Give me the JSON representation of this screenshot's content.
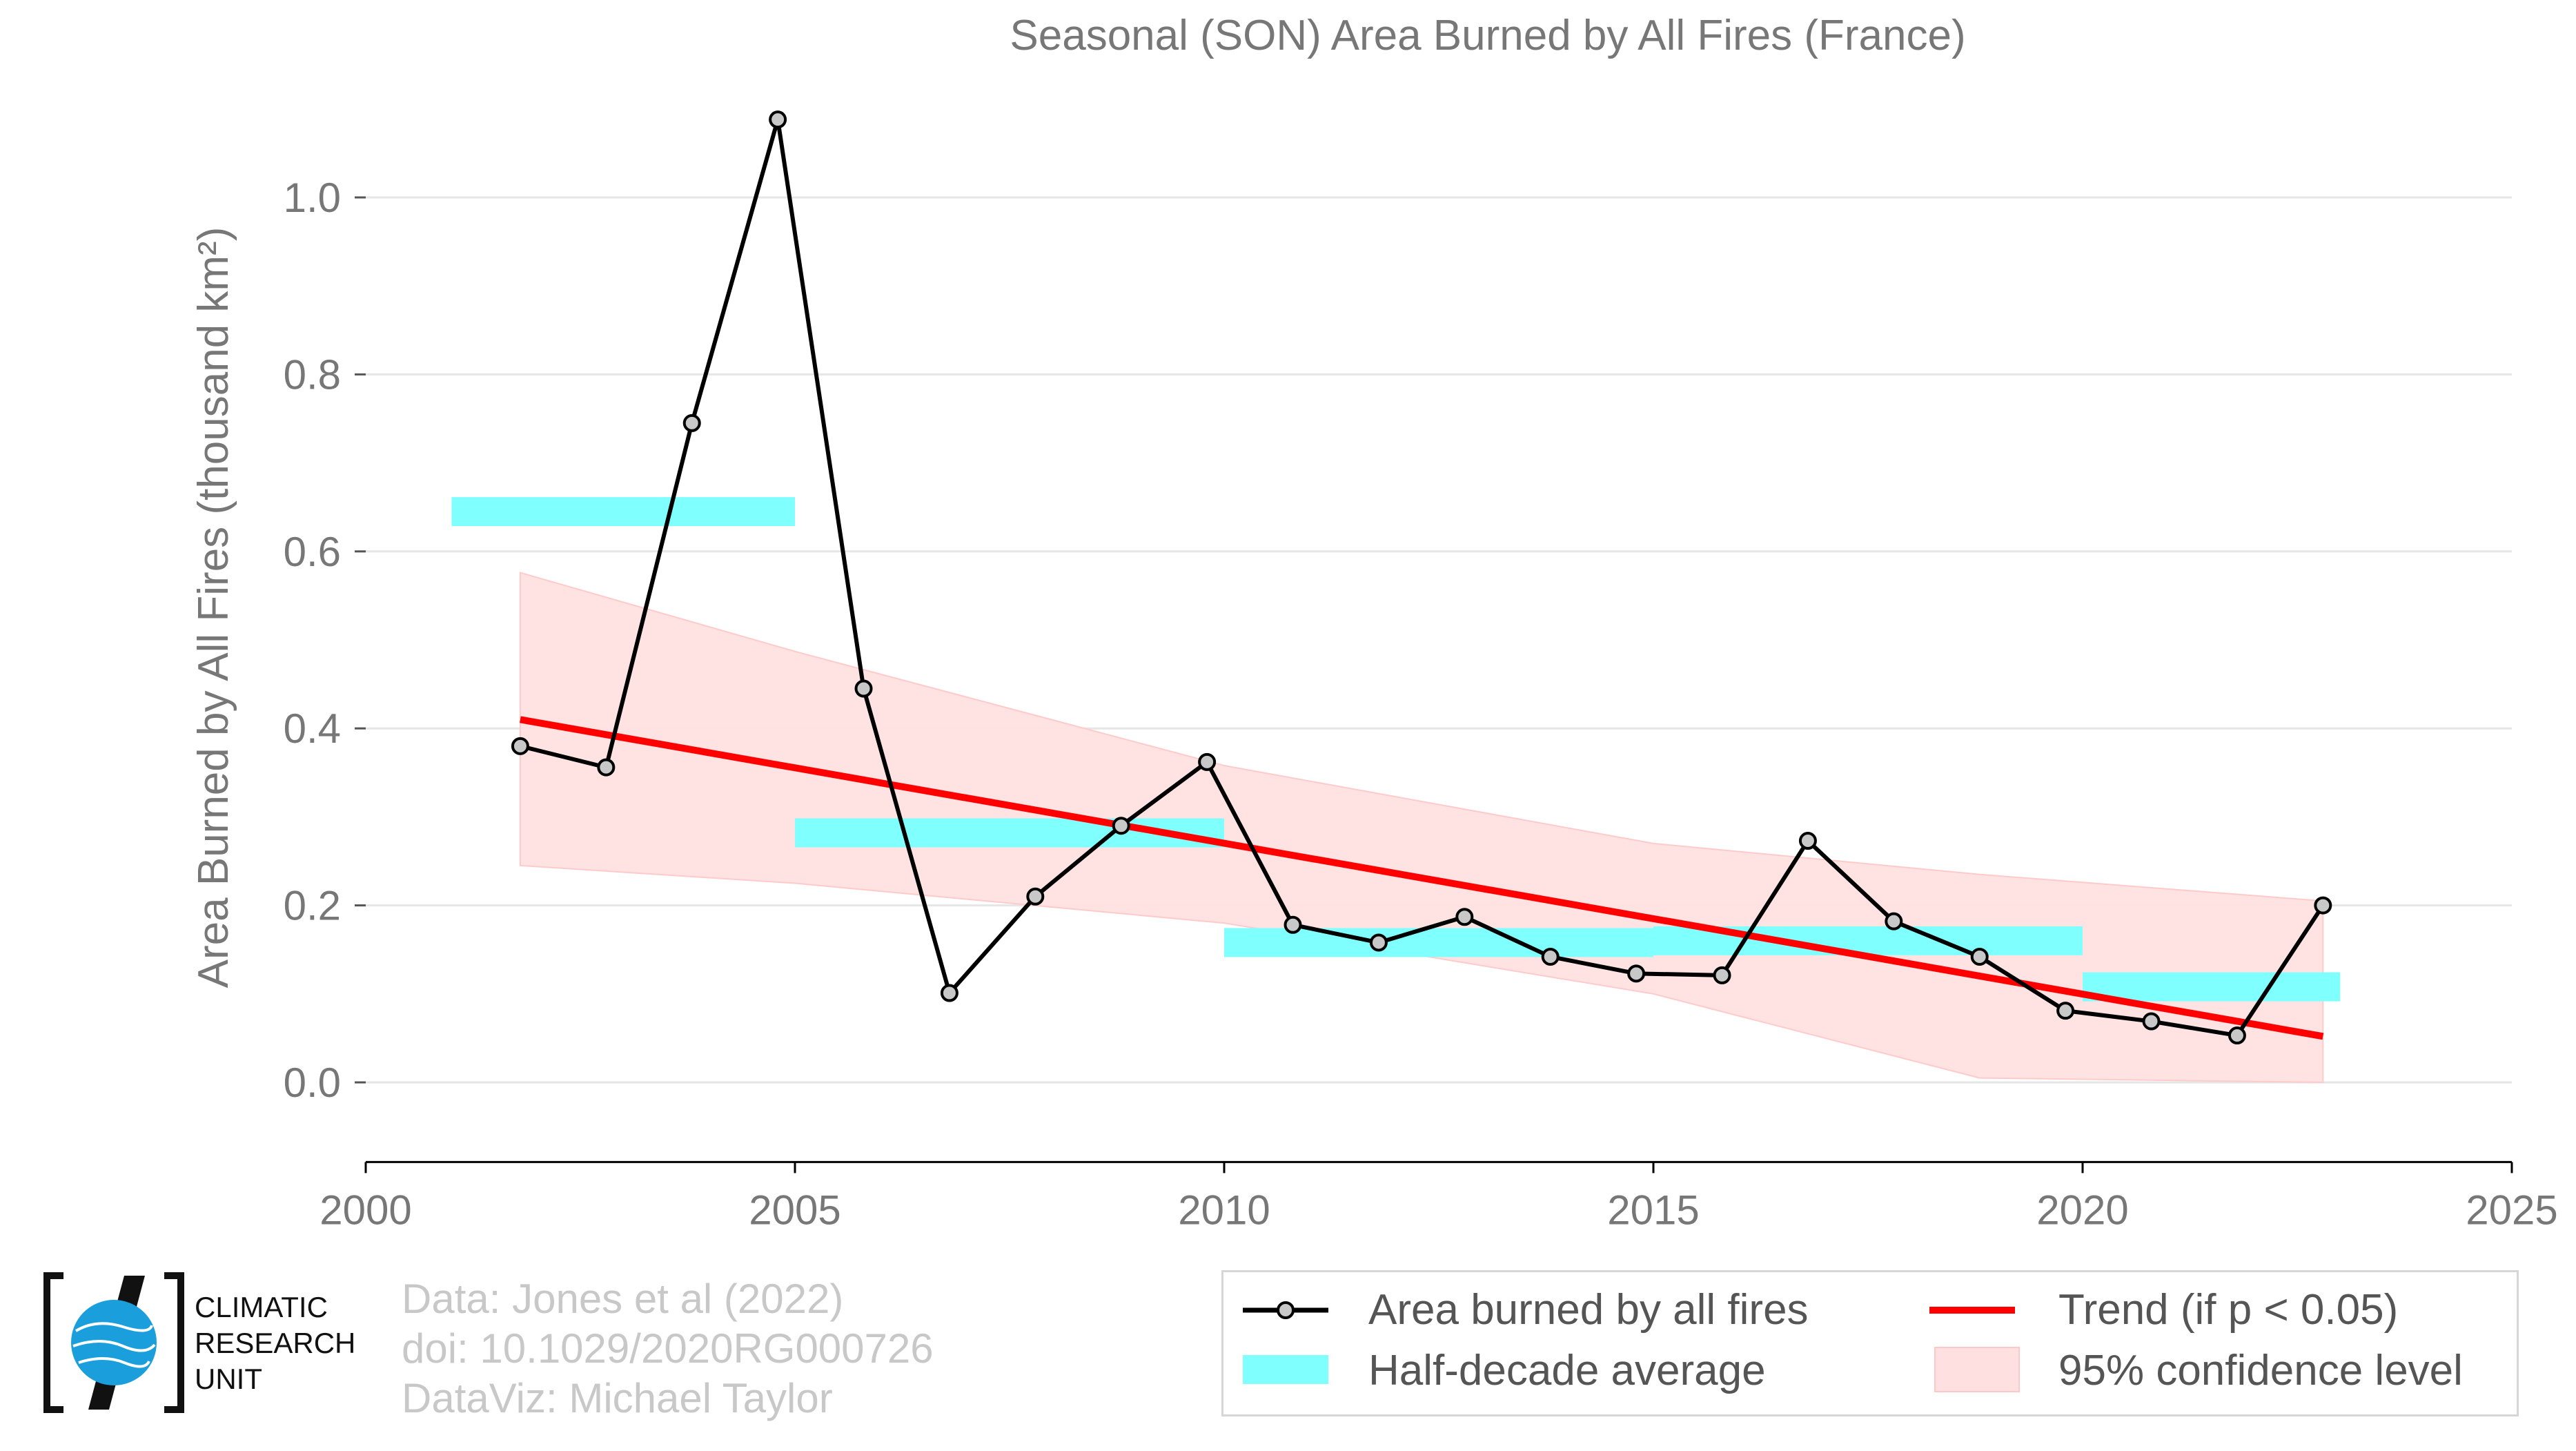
{
  "chart_data": {
    "type": "line",
    "title": "Seasonal (SON) Area Burned by All Fires (France)",
    "xlabel": "",
    "ylabel": "Area Burned by All Fires (thousand km²)",
    "xlim": [
      2000,
      2025
    ],
    "ylim": [
      -0.09,
      1.15
    ],
    "x_ticks": [
      2000,
      2005,
      2010,
      2015,
      2020,
      2025
    ],
    "y_ticks": [
      0.0,
      0.2,
      0.4,
      0.6,
      0.8,
      1.0
    ],
    "y_tick_labels": [
      "0.0",
      "0.2",
      "0.4",
      "0.6",
      "0.8",
      "1.0"
    ],
    "grid": "horizontal",
    "legend_position": "bottom-right",
    "series": [
      {
        "name": "Area burned by all fires",
        "color": "#000000",
        "x": [
          2001.8,
          2002.8,
          2003.8,
          2004.8,
          2005.8,
          2006.8,
          2007.8,
          2008.8,
          2009.8,
          2010.8,
          2011.8,
          2012.8,
          2013.8,
          2014.8,
          2015.8,
          2016.8,
          2017.8,
          2018.8,
          2019.8,
          2020.8,
          2021.8,
          2022.8
        ],
        "y": [
          0.38,
          0.356,
          0.745,
          1.088,
          0.445,
          0.101,
          0.21,
          0.29,
          0.362,
          0.178,
          0.158,
          0.187,
          0.142,
          0.123,
          0.121,
          0.273,
          0.182,
          0.142,
          0.081,
          0.069,
          0.053,
          0.2
        ]
      }
    ],
    "half_decade_average": {
      "name": "Half-decade average",
      "color": "#80ffff",
      "segments": [
        {
          "x0": 2001.0,
          "x1": 2005.0,
          "y": 0.645
        },
        {
          "x0": 2005.0,
          "x1": 2010.0,
          "y": 0.282
        },
        {
          "x0": 2010.0,
          "x1": 2015.0,
          "y": 0.158
        },
        {
          "x0": 2015.0,
          "x1": 2020.0,
          "y": 0.16
        },
        {
          "x0": 2020.0,
          "x1": 2023.0,
          "y": 0.108
        }
      ]
    },
    "trend": {
      "name": "Trend (if p < 0.05)",
      "color": "#ff0000",
      "x": [
        2001.8,
        2022.8
      ],
      "y": [
        0.41,
        0.052
      ]
    },
    "confidence_band": {
      "name": "95% confidence level",
      "color": "#ffe0e0",
      "x": [
        2001.8,
        2005.0,
        2010.0,
        2015.0,
        2018.8,
        2022.8
      ],
      "upper": [
        0.576,
        0.487,
        0.358,
        0.27,
        0.235,
        0.205
      ],
      "lower": [
        0.245,
        0.225,
        0.18,
        0.1,
        0.005,
        0.0
      ]
    }
  },
  "footer": {
    "logo_lines": [
      "CLIMATIC",
      "RESEARCH",
      "UNIT"
    ],
    "credits": [
      "Data: Jones et al (2022)",
      "doi: 10.1029/2020RG000726",
      "DataViz: Michael Taylor"
    ]
  },
  "legend": {
    "line": "Area burned by all fires",
    "half_decade": "Half-decade average",
    "trend": "Trend (if p < 0.05)",
    "confidence": "95% confidence level"
  },
  "colors": {
    "line": "#000000",
    "marker_fill": "#c8c8c8",
    "half_decade": "#80ffff",
    "trend": "#ff0000",
    "confidence": "#ffe0e0",
    "logo_blue": "#1a9fdc"
  }
}
